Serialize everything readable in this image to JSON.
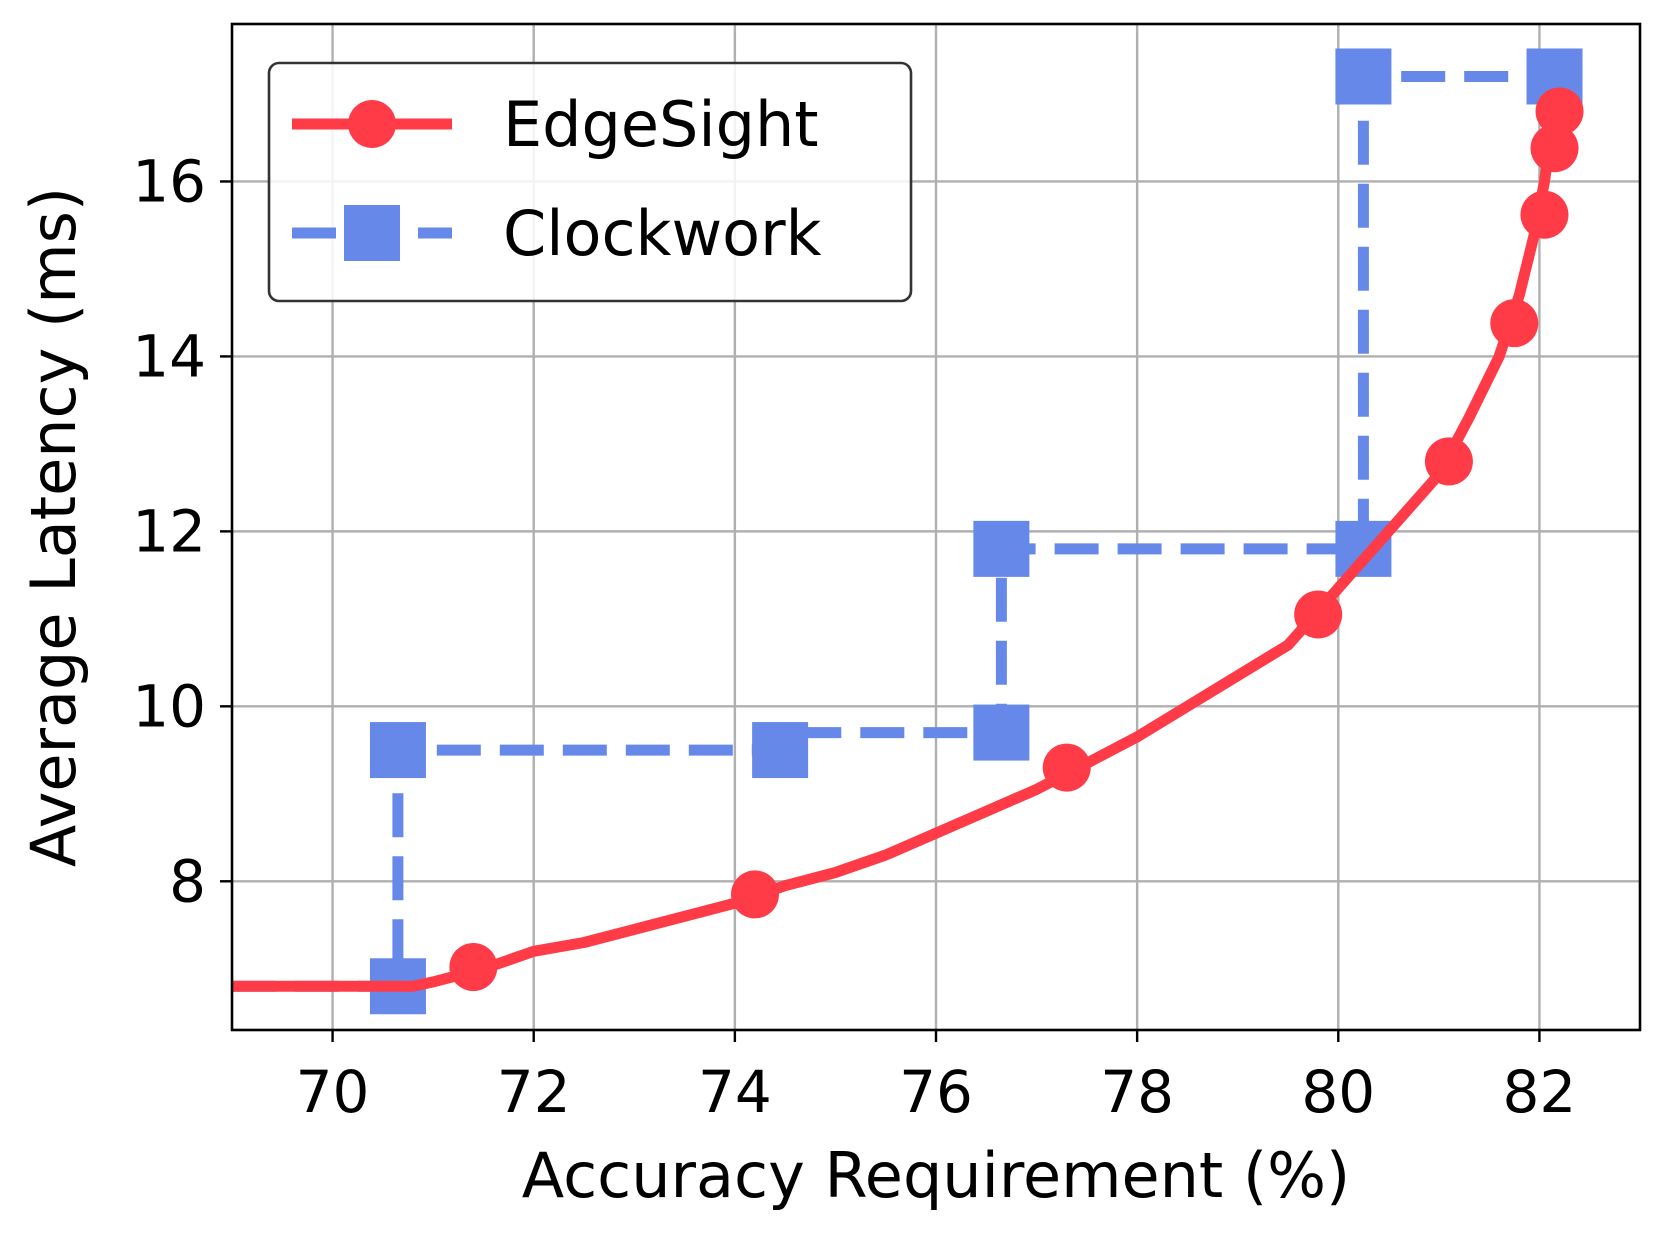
{
  "chart_data": {
    "type": "line",
    "xlabel": "Accuracy Requirement (%)",
    "ylabel": "Average Latency (ms)",
    "xlim": [
      69.0,
      83.0
    ],
    "ylim": [
      6.3,
      17.8
    ],
    "xticks": [
      70,
      72,
      74,
      76,
      78,
      80,
      82
    ],
    "yticks": [
      8,
      10,
      12,
      14,
      16
    ],
    "grid": true,
    "legend_position": "top-left",
    "series": [
      {
        "name": "EdgeSight",
        "color": "#ff3b47",
        "marker": "circle",
        "linestyle": "solid",
        "line": [
          [
            69.0,
            6.8
          ],
          [
            70.8,
            6.8
          ],
          [
            71.0,
            6.85
          ],
          [
            71.5,
            7.0
          ],
          [
            72.0,
            7.2
          ],
          [
            72.5,
            7.3
          ],
          [
            73.0,
            7.45
          ],
          [
            73.5,
            7.6
          ],
          [
            74.0,
            7.75
          ],
          [
            74.5,
            7.95
          ],
          [
            75.0,
            8.1
          ],
          [
            75.5,
            8.3
          ],
          [
            76.0,
            8.55
          ],
          [
            76.5,
            8.8
          ],
          [
            77.0,
            9.05
          ],
          [
            77.5,
            9.35
          ],
          [
            78.0,
            9.65
          ],
          [
            78.5,
            10.0
          ],
          [
            79.0,
            10.35
          ],
          [
            79.5,
            10.7
          ],
          [
            80.0,
            11.35
          ],
          [
            80.5,
            12.0
          ],
          [
            81.0,
            12.65
          ],
          [
            81.3,
            13.3
          ],
          [
            81.6,
            14.0
          ],
          [
            81.8,
            14.7
          ],
          [
            81.95,
            15.4
          ],
          [
            82.05,
            16.0
          ],
          [
            82.12,
            16.6
          ],
          [
            82.15,
            17.0
          ]
        ],
        "markers": [
          [
            71.4,
            7.02
          ],
          [
            74.2,
            7.85
          ],
          [
            77.3,
            9.3
          ],
          [
            79.8,
            11.05
          ],
          [
            81.1,
            12.8
          ],
          [
            81.75,
            14.38
          ],
          [
            82.05,
            15.62
          ],
          [
            82.15,
            16.38
          ],
          [
            82.2,
            16.8
          ]
        ]
      },
      {
        "name": "Clockwork",
        "color": "#6688e8",
        "marker": "square",
        "linestyle": "dashed",
        "line": [
          [
            69.0,
            6.8
          ],
          [
            70.65,
            6.8
          ],
          [
            70.65,
            9.5
          ],
          [
            74.5,
            9.5
          ],
          [
            74.5,
            9.7
          ],
          [
            76.65,
            9.7
          ],
          [
            76.65,
            11.8
          ],
          [
            80.25,
            11.8
          ],
          [
            80.25,
            17.2
          ],
          [
            82.15,
            17.2
          ]
        ],
        "markers": [
          [
            70.65,
            6.8
          ],
          [
            70.65,
            9.5
          ],
          [
            74.45,
            9.5
          ],
          [
            76.65,
            9.7
          ],
          [
            76.65,
            11.8
          ],
          [
            80.25,
            11.8
          ],
          [
            80.25,
            17.2
          ],
          [
            82.15,
            17.2
          ]
        ]
      }
    ]
  }
}
